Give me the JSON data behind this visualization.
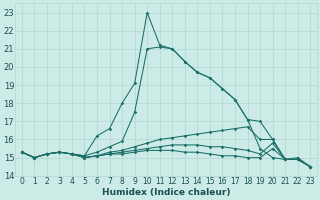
{
  "xlabel": "Humidex (Indice chaleur)",
  "bg_color": "#cceae6",
  "grid_color": "#b0d8d2",
  "line_color": "#1a6e68",
  "xlim_min": -0.5,
  "xlim_max": 23.5,
  "ylim_min": 14,
  "ylim_max": 23.5,
  "x": [
    0,
    1,
    2,
    3,
    4,
    5,
    6,
    7,
    8,
    9,
    10,
    11,
    12,
    13,
    14,
    15,
    16,
    17,
    18,
    19,
    20,
    21,
    22,
    23
  ],
  "line1": [
    15.3,
    15.0,
    15.2,
    15.3,
    15.2,
    15.1,
    16.2,
    16.6,
    18.0,
    19.1,
    23.0,
    21.2,
    21.0,
    20.3,
    19.7,
    19.4,
    18.8,
    18.2,
    17.1,
    15.5,
    15.0,
    14.9,
    15.0,
    14.5
  ],
  "line2": [
    15.3,
    15.0,
    15.2,
    15.3,
    15.2,
    15.1,
    15.3,
    15.6,
    15.9,
    17.5,
    21.0,
    21.1,
    21.0,
    20.3,
    19.7,
    19.4,
    18.8,
    18.2,
    17.1,
    17.0,
    16.0,
    14.9,
    14.9,
    14.5
  ],
  "line3": [
    15.3,
    15.0,
    15.2,
    15.3,
    15.2,
    15.0,
    15.1,
    15.3,
    15.4,
    15.6,
    15.8,
    16.0,
    16.1,
    16.2,
    16.3,
    16.4,
    16.5,
    16.6,
    16.7,
    16.0,
    16.0,
    14.9,
    14.9,
    14.5
  ],
  "line4": [
    15.3,
    15.0,
    15.2,
    15.3,
    15.2,
    15.0,
    15.1,
    15.2,
    15.3,
    15.4,
    15.5,
    15.6,
    15.7,
    15.7,
    15.7,
    15.6,
    15.6,
    15.5,
    15.4,
    15.2,
    15.8,
    14.9,
    14.9,
    14.5
  ],
  "line5": [
    15.3,
    15.0,
    15.2,
    15.3,
    15.2,
    15.0,
    15.1,
    15.2,
    15.2,
    15.3,
    15.4,
    15.4,
    15.4,
    15.3,
    15.3,
    15.2,
    15.1,
    15.1,
    15.0,
    15.0,
    15.5,
    14.9,
    14.9,
    14.5
  ],
  "xlabel_fontsize": 6.5,
  "tick_fontsize": 5.5
}
